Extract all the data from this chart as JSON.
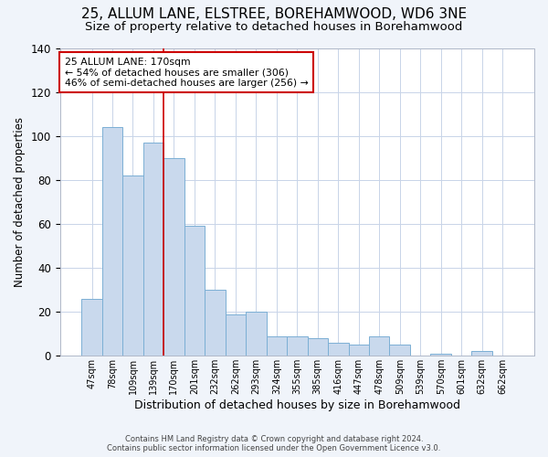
{
  "title1": "25, ALLUM LANE, ELSTREE, BOREHAMWOOD, WD6 3NE",
  "title2": "Size of property relative to detached houses in Borehamwood",
  "xlabel": "Distribution of detached houses by size in Borehamwood",
  "ylabel": "Number of detached properties",
  "bar_labels": [
    "47sqm",
    "78sqm",
    "109sqm",
    "139sqm",
    "170sqm",
    "201sqm",
    "232sqm",
    "262sqm",
    "293sqm",
    "324sqm",
    "355sqm",
    "385sqm",
    "416sqm",
    "447sqm",
    "478sqm",
    "509sqm",
    "539sqm",
    "570sqm",
    "601sqm",
    "632sqm",
    "662sqm"
  ],
  "bar_values": [
    26,
    104,
    82,
    97,
    90,
    59,
    30,
    19,
    20,
    9,
    9,
    8,
    6,
    5,
    9,
    5,
    0,
    1,
    0,
    2,
    0
  ],
  "bar_color": "#c9d9ed",
  "bar_edge_color": "#7bafd4",
  "vline_color": "#cc0000",
  "vline_bar_index": 4,
  "ylim": [
    0,
    140
  ],
  "annotation_title": "25 ALLUM LANE: 170sqm",
  "annotation_line1": "← 54% of detached houses are smaller (306)",
  "annotation_line2": "46% of semi-detached houses are larger (256) →",
  "annotation_box_color": "#cc0000",
  "footer1": "Contains HM Land Registry data © Crown copyright and database right 2024.",
  "footer2": "Contains public sector information licensed under the Open Government Licence v3.0.",
  "bg_color": "#f0f4fa",
  "plot_bg_color": "#ffffff",
  "title1_fontsize": 11,
  "title2_fontsize": 9.5
}
